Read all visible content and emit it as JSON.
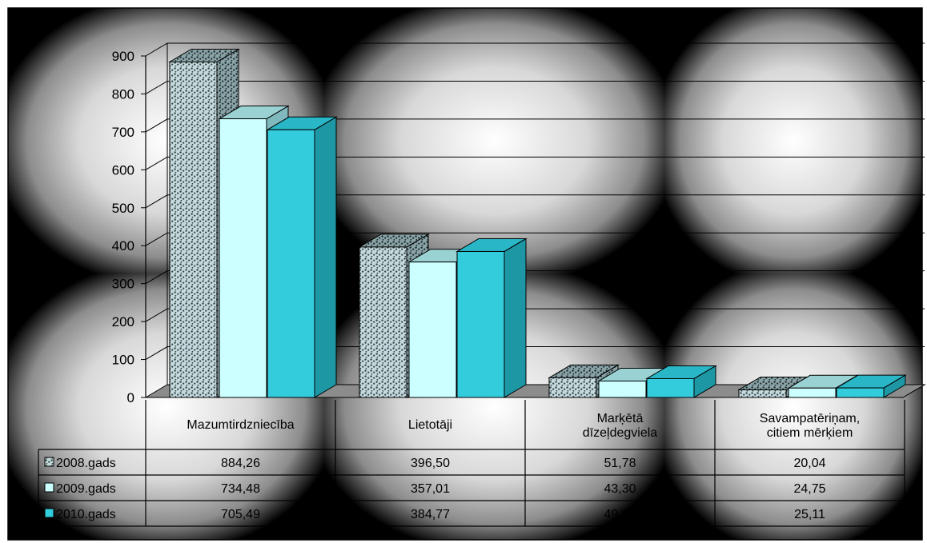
{
  "chart_data": {
    "type": "bar",
    "title": "",
    "xlabel": "",
    "ylabel": "",
    "ylim": [
      0,
      900
    ],
    "yticks": [
      0,
      100,
      200,
      300,
      400,
      500,
      600,
      700,
      800,
      900
    ],
    "grid": true,
    "legend_placement": "data-table-left",
    "categories": [
      "Mazumtirdzniecība",
      "Lietotāji",
      "Marķētā dīzeļdegviela",
      "Savampatēriņam, citiem mērķiem"
    ],
    "category_label_lines": [
      [
        "Mazumtirdzniecība"
      ],
      [
        "Lietotāji"
      ],
      [
        "Marķētā",
        "dīzeļdegviela"
      ],
      [
        "Savampatēriņam,",
        "citiem mērķiem"
      ]
    ],
    "series": [
      {
        "name": "2008.gads",
        "values": [
          884.26,
          396.5,
          51.78,
          20.04
        ],
        "value_labels": [
          "884,26",
          "396,50",
          "51,78",
          "20,04"
        ],
        "pattern": "dotted-gray",
        "color": "#6f8f95"
      },
      {
        "name": "2009.gads",
        "values": [
          734.48,
          357.01,
          43.3,
          24.75
        ],
        "value_labels": [
          "734,48",
          "357,01",
          "43,30",
          "24,75"
        ],
        "pattern": "solid",
        "color": "#ccffff"
      },
      {
        "name": "2010.gads",
        "values": [
          705.49,
          384.77,
          49.65,
          25.11
        ],
        "value_labels": [
          "705,49",
          "384,77",
          "49,65",
          "25,11"
        ],
        "pattern": "solid",
        "color": "#33ccdd"
      }
    ]
  }
}
